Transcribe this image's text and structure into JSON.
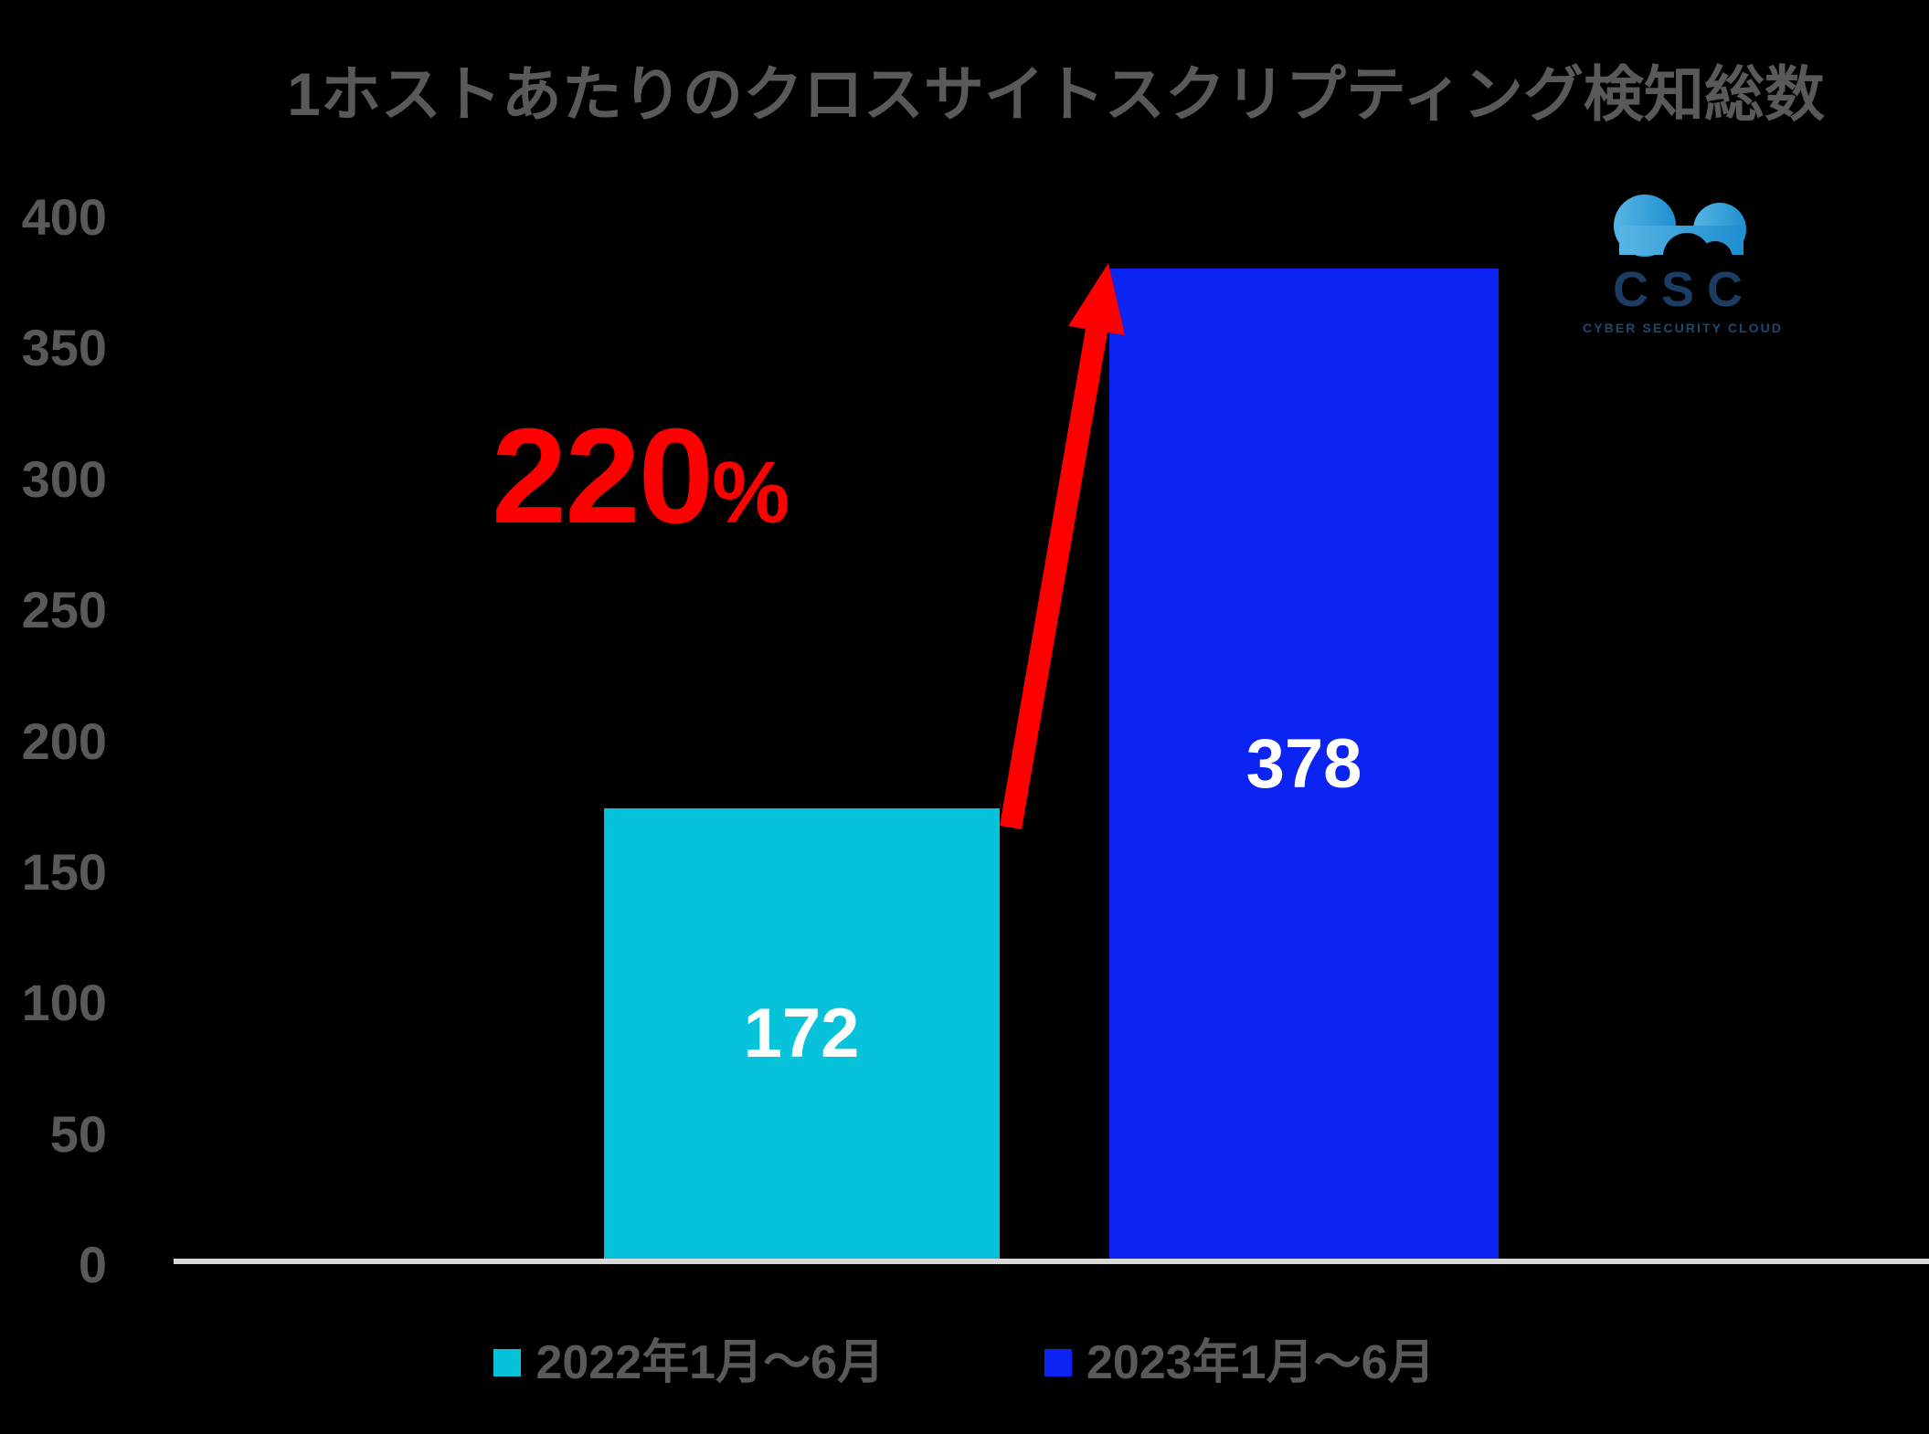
{
  "chart_data": {
    "type": "bar",
    "title": "1ホストあたりのクロスサイトスクリプティング検知総数",
    "categories": [
      "2022年1月〜6月",
      "2023年1月〜6月"
    ],
    "values": [
      172,
      378
    ],
    "value_labels": [
      "172",
      "378"
    ],
    "bar_colors": [
      "#06C3DB",
      "#0B24F1"
    ],
    "ylim": [
      0,
      400
    ],
    "ytick_step": 50,
    "yticks": [
      0,
      50,
      100,
      150,
      200,
      250,
      300,
      350,
      400
    ],
    "xlabel": "",
    "ylabel": "",
    "grid": false,
    "legend_position": "bottom",
    "annotation": {
      "text": "220%",
      "color": "#FF0000",
      "meaning": "increase from 172 to 378"
    }
  },
  "annotation": {
    "value": "220",
    "unit": "%"
  },
  "legend": [
    {
      "label": "2022年1月〜6月",
      "color": "#06C3DB"
    },
    {
      "label": "2023年1月〜6月",
      "color": "#0B24F1"
    }
  ],
  "logo": {
    "acronym": "CSC",
    "tagline": "CYBER SECURITY CLOUD"
  },
  "colors": {
    "background": "#000000",
    "text_gray": "#595959",
    "axis_line": "#D9D9D9",
    "arrow_red": "#FF0000",
    "value_label": "#FFFFFF"
  }
}
